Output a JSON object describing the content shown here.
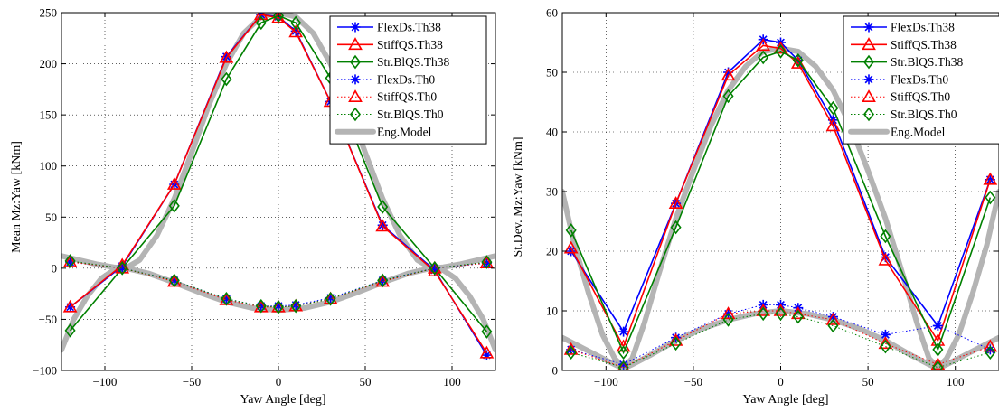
{
  "chart_data": [
    {
      "type": "line",
      "title": "",
      "xlabel": "Yaw Angle [deg]",
      "ylabel": "Mean Mz:Yaw  [kNm]",
      "xlim": [
        -125,
        125
      ],
      "ylim": [
        -100,
        250
      ],
      "xticks": [
        -100,
        -50,
        0,
        50,
        100
      ],
      "yticks": [
        -100,
        -50,
        0,
        50,
        100,
        150,
        200,
        250
      ],
      "grid": true,
      "legend_position": "top-right",
      "series": [
        {
          "name": "FlexDs.Th38",
          "color": "#0000ff",
          "style": "solid",
          "marker": "asterisk",
          "x": [
            -120,
            -90,
            -60,
            -30,
            -10,
            0,
            10,
            30,
            60,
            90,
            120
          ],
          "y": [
            -38,
            2,
            82,
            207,
            248,
            246,
            232,
            163,
            42,
            -2,
            -85
          ]
        },
        {
          "name": "StiffQS.Th38",
          "color": "#ff0000",
          "style": "solid",
          "marker": "triangle",
          "x": [
            -120,
            -90,
            -60,
            -30,
            -10,
            0,
            10,
            30,
            60,
            90,
            120
          ],
          "y": [
            -38,
            3,
            82,
            206,
            248,
            245,
            231,
            163,
            41,
            -3,
            -83
          ]
        },
        {
          "name": "Str.BlQS.Th38",
          "color": "#008000",
          "style": "solid",
          "marker": "diamond",
          "x": [
            -120,
            -90,
            -60,
            -30,
            -10,
            0,
            10,
            30,
            60,
            90,
            120
          ],
          "y": [
            -61,
            0,
            61,
            185,
            240,
            247,
            240,
            186,
            60,
            0,
            -62
          ]
        },
        {
          "name": "FlexDs.Th0",
          "color": "#0000ff",
          "style": "dotted",
          "marker": "asterisk",
          "x": [
            -120,
            -90,
            -60,
            -30,
            -10,
            0,
            10,
            30,
            60,
            90,
            120
          ],
          "y": [
            6,
            0,
            -12,
            -30,
            -37,
            -37,
            -36,
            -29,
            -12,
            0,
            5
          ]
        },
        {
          "name": "StiffQS.Th0",
          "color": "#ff0000",
          "style": "dotted",
          "marker": "triangle",
          "x": [
            -120,
            -90,
            -60,
            -30,
            -10,
            0,
            10,
            30,
            60,
            90,
            120
          ],
          "y": [
            6,
            0,
            -13,
            -31,
            -38,
            -38,
            -37,
            -30,
            -13,
            0,
            5
          ]
        },
        {
          "name": "Str.BlQS.Th0",
          "color": "#008000",
          "style": "dotted",
          "marker": "diamond",
          "x": [
            -120,
            -90,
            -60,
            -30,
            -10,
            0,
            10,
            30,
            60,
            90,
            120
          ],
          "y": [
            7,
            0,
            -12,
            -30,
            -37,
            -38,
            -37,
            -30,
            -12,
            0,
            6
          ]
        },
        {
          "name": "Eng.Model",
          "color": "#b4b4b4",
          "style": "thick",
          "marker": "none",
          "x": [
            -125,
            -118,
            -110,
            -102,
            -95,
            -88,
            -80,
            -70,
            -60,
            -50,
            -40,
            -30,
            -20,
            -10,
            0,
            10,
            20,
            30,
            40,
            50,
            60,
            70,
            80,
            88,
            95,
            102,
            110,
            118,
            125
          ],
          "y": [
            -80,
            -50,
            -27,
            -10,
            -2,
            0,
            8,
            32,
            68,
            113,
            160,
            200,
            230,
            246,
            250,
            246,
            230,
            200,
            160,
            113,
            68,
            32,
            8,
            0,
            -2,
            -10,
            -27,
            -50,
            -80
          ]
        },
        {
          "name": "",
          "color": "#b4b4b4",
          "style": "thick",
          "marker": "none",
          "x": [
            -125,
            -115,
            -105,
            -95,
            -88,
            -75,
            -60,
            -45,
            -30,
            -15,
            0,
            15,
            30,
            45,
            60,
            75,
            88,
            95,
            105,
            115,
            125
          ],
          "y": [
            12,
            8,
            4,
            1,
            0,
            -5,
            -14,
            -24,
            -33,
            -39,
            -41,
            -39,
            -33,
            -24,
            -14,
            -5,
            0,
            1,
            4,
            8,
            12
          ]
        }
      ]
    },
    {
      "type": "line",
      "title": "",
      "xlabel": "Yaw Angle [deg]",
      "ylabel": "St.Dev. Mz:Yaw  [kNm]",
      "xlim": [
        -125,
        125
      ],
      "ylim": [
        0,
        60
      ],
      "xticks": [
        -100,
        -50,
        0,
        50,
        100
      ],
      "yticks": [
        0,
        10,
        20,
        30,
        40,
        50,
        60
      ],
      "grid": true,
      "legend_position": "top-right",
      "series": [
        {
          "name": "FlexDs.Th38",
          "color": "#0000ff",
          "style": "solid",
          "marker": "asterisk",
          "x": [
            -120,
            -90,
            -60,
            -30,
            -10,
            0,
            10,
            30,
            60,
            90,
            120
          ],
          "y": [
            20,
            6.5,
            28,
            50,
            55.5,
            55,
            52,
            42,
            19,
            7.5,
            32
          ]
        },
        {
          "name": "StiffQS.Th38",
          "color": "#ff0000",
          "style": "solid",
          "marker": "triangle",
          "x": [
            -120,
            -90,
            -60,
            -30,
            -10,
            0,
            10,
            30,
            60,
            90,
            120
          ],
          "y": [
            20.5,
            4,
            28,
            49.5,
            54.5,
            54,
            51.5,
            41,
            18.5,
            5,
            32
          ]
        },
        {
          "name": "Str.BlQS.Th38",
          "color": "#008000",
          "style": "solid",
          "marker": "diamond",
          "x": [
            -120,
            -90,
            -60,
            -30,
            -10,
            0,
            10,
            30,
            60,
            90,
            120
          ],
          "y": [
            23.5,
            3,
            24,
            46,
            52.5,
            53.5,
            52,
            44,
            22.5,
            3.5,
            29
          ]
        },
        {
          "name": "FlexDs.Th0",
          "color": "#0000ff",
          "style": "dotted",
          "marker": "asterisk",
          "x": [
            -120,
            -90,
            -60,
            -30,
            -10,
            0,
            10,
            30,
            60,
            90,
            120
          ],
          "y": [
            3.5,
            1,
            5.5,
            9.5,
            11,
            11,
            10.5,
            9,
            6,
            7.5,
            3.5
          ]
        },
        {
          "name": "StiffQS.Th0",
          "color": "#ff0000",
          "style": "dotted",
          "marker": "triangle",
          "x": [
            -120,
            -90,
            -60,
            -30,
            -10,
            0,
            10,
            30,
            60,
            90,
            120
          ],
          "y": [
            3.5,
            0.5,
            5,
            9.5,
            10,
            10,
            9.5,
            8.5,
            4.5,
            1,
            4
          ]
        },
        {
          "name": "Str.BlQS.Th0",
          "color": "#008000",
          "style": "dotted",
          "marker": "diamond",
          "x": [
            -120,
            -90,
            -60,
            -30,
            -10,
            0,
            10,
            30,
            60,
            90,
            120
          ],
          "y": [
            3,
            0.5,
            4.5,
            8.5,
            9.5,
            9.5,
            9,
            7.5,
            4,
            0.5,
            3
          ]
        },
        {
          "name": "Eng.Model",
          "color": "#b4b4b4",
          "style": "thick",
          "marker": "none",
          "x": [
            -125,
            -118,
            -110,
            -102,
            -95,
            -90,
            -85,
            -78,
            -70,
            -60,
            -50,
            -40,
            -30,
            -20,
            -10,
            0,
            10,
            20,
            30,
            40,
            50,
            60,
            70,
            78,
            85,
            90,
            95,
            102,
            110,
            118,
            125
          ],
          "y": [
            30,
            21,
            13,
            6,
            2,
            0.5,
            2,
            8,
            16,
            25.5,
            33.5,
            41,
            47,
            51,
            53.5,
            54,
            53.5,
            51,
            47,
            41,
            33.5,
            25.5,
            16,
            8,
            2,
            0.5,
            2,
            6,
            13,
            21,
            30
          ]
        },
        {
          "name": "",
          "color": "#b4b4b4",
          "style": "thick",
          "marker": "none",
          "x": [
            -125,
            -115,
            -105,
            -95,
            -90,
            -85,
            -75,
            -60,
            -45,
            -30,
            -15,
            0,
            15,
            30,
            45,
            60,
            75,
            85,
            90,
            95,
            105,
            115,
            125
          ],
          "y": [
            5.5,
            4,
            2.5,
            1,
            0.3,
            1,
            2.5,
            5,
            7,
            8.5,
            9.5,
            10,
            9.5,
            8.5,
            7,
            5,
            2.5,
            1,
            0.3,
            1,
            2.5,
            4,
            5.5
          ]
        }
      ]
    }
  ]
}
